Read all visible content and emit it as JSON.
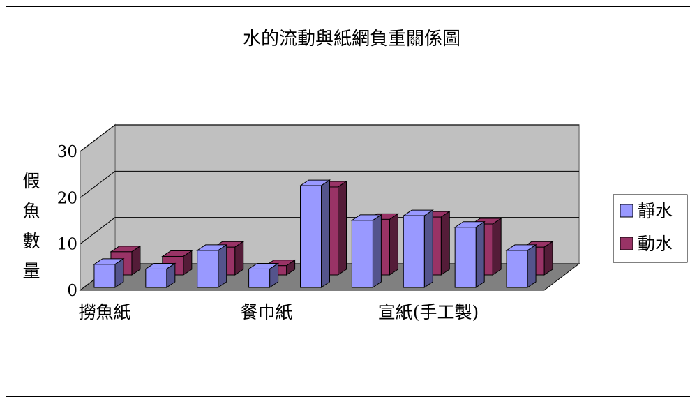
{
  "chart_data": {
    "type": "bar",
    "title": "水的流動與紙網負重關係圖",
    "ylabel_chars": [
      "假",
      "魚",
      "數",
      "量"
    ],
    "ylim": [
      0,
      30
    ],
    "yticks": [
      "0",
      "10",
      "20",
      "30"
    ],
    "category_labels": [
      "撈魚紙",
      "餐巾紙",
      "宣紙(手工製)"
    ],
    "series": [
      {
        "name": "靜水",
        "color": "#9999FF",
        "values": [
          5,
          4,
          8,
          4,
          22,
          14.5,
          15.5,
          13,
          8
        ]
      },
      {
        "name": "動水",
        "color": "#993366",
        "values": [
          5,
          4,
          6,
          2,
          19,
          12,
          12.5,
          11,
          6
        ]
      }
    ],
    "grid": true,
    "legend": "right"
  }
}
